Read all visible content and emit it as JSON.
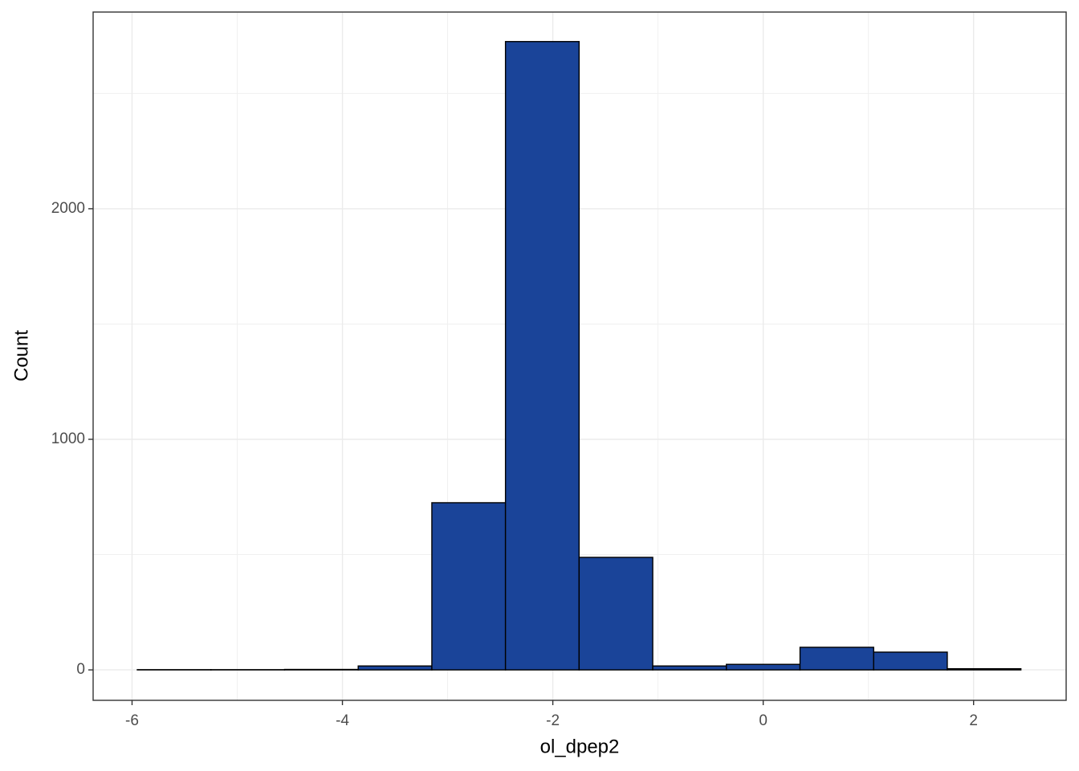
{
  "chart_data": {
    "type": "histogram",
    "xlabel": "ol_dpep2",
    "ylabel": "Count",
    "bins": [
      -5.95,
      -5.25,
      -4.55,
      -3.85,
      -3.15,
      -2.45,
      -1.75,
      -1.05,
      -0.35,
      0.35,
      1.05,
      1.75,
      2.45
    ],
    "values": [
      1,
      1,
      2,
      17,
      725,
      2725,
      488,
      17,
      24,
      98,
      77,
      5
    ],
    "color": "#1a4499",
    "xlim": [
      -6.37,
      2.88
    ],
    "xticks": [
      -6,
      -4,
      -2,
      0,
      2
    ],
    "xminorticks": [
      -5,
      -3,
      -1,
      1
    ],
    "ylim": [
      -132,
      2853
    ],
    "yticks": [
      0,
      1000,
      2000
    ],
    "yminorticks": [
      500,
      1500,
      2500
    ],
    "grid": true
  }
}
